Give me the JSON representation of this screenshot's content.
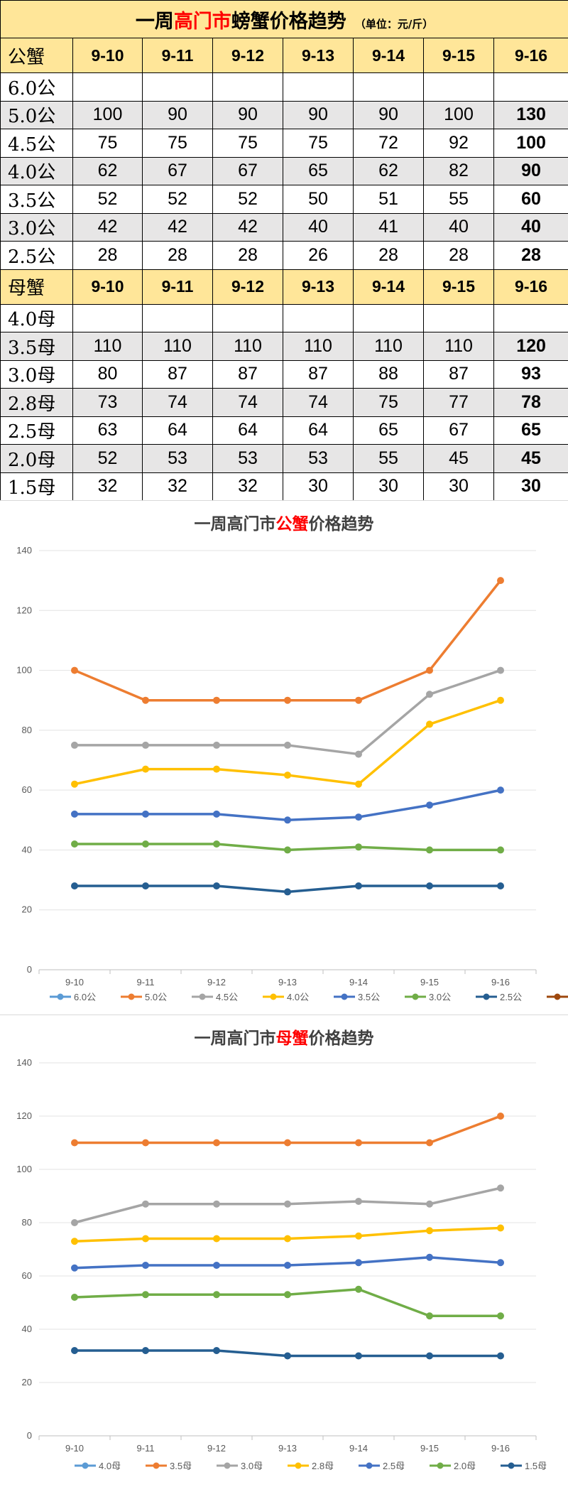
{
  "table": {
    "title_prefix": "一周",
    "title_highlight": "高门市",
    "title_suffix": "螃蟹价格趋势",
    "unit": "（单位：元/斤）",
    "male": {
      "label": "公蟹",
      "dates": [
        "9-10",
        "9-11",
        "9-12",
        "9-13",
        "9-14",
        "9-15",
        "9-16"
      ],
      "rows": [
        {
          "grade": "6.0公",
          "values": [
            "",
            "",
            "",
            "",
            "",
            "",
            ""
          ]
        },
        {
          "grade": "5.0公",
          "values": [
            "100",
            "90",
            "90",
            "90",
            "90",
            "100",
            "130"
          ]
        },
        {
          "grade": "4.5公",
          "values": [
            "75",
            "75",
            "75",
            "75",
            "72",
            "92",
            "100"
          ]
        },
        {
          "grade": "4.0公",
          "values": [
            "62",
            "67",
            "67",
            "65",
            "62",
            "82",
            "90"
          ]
        },
        {
          "grade": "3.5公",
          "values": [
            "52",
            "52",
            "52",
            "50",
            "51",
            "55",
            "60"
          ]
        },
        {
          "grade": "3.0公",
          "values": [
            "42",
            "42",
            "42",
            "40",
            "41",
            "40",
            "40"
          ]
        },
        {
          "grade": "2.5公",
          "values": [
            "28",
            "28",
            "28",
            "26",
            "28",
            "28",
            "28"
          ]
        }
      ]
    },
    "female": {
      "label": "母蟹",
      "dates": [
        "9-10",
        "9-11",
        "9-12",
        "9-13",
        "9-14",
        "9-15",
        "9-16"
      ],
      "rows": [
        {
          "grade": "4.0母",
          "values": [
            "",
            "",
            "",
            "",
            "",
            "",
            ""
          ]
        },
        {
          "grade": "3.5母",
          "values": [
            "110",
            "110",
            "110",
            "110",
            "110",
            "110",
            "120"
          ]
        },
        {
          "grade": "3.0母",
          "values": [
            "80",
            "87",
            "87",
            "87",
            "88",
            "87",
            "93"
          ]
        },
        {
          "grade": "2.8母",
          "values": [
            "73",
            "74",
            "74",
            "74",
            "75",
            "77",
            "78"
          ]
        },
        {
          "grade": "2.5母",
          "values": [
            "63",
            "64",
            "64",
            "64",
            "65",
            "67",
            "65"
          ]
        },
        {
          "grade": "2.0母",
          "values": [
            "52",
            "53",
            "53",
            "53",
            "55",
            "45",
            "45"
          ]
        },
        {
          "grade": "1.5母",
          "values": [
            "32",
            "32",
            "32",
            "30",
            "30",
            "30",
            "30"
          ]
        }
      ]
    }
  },
  "chart_data": [
    {
      "type": "line",
      "title_prefix": "一周高门市",
      "title_highlight": "公蟹",
      "title_suffix": "价格趋势",
      "categories": [
        "9-10",
        "9-11",
        "9-12",
        "9-13",
        "9-14",
        "9-15",
        "9-16"
      ],
      "ylim": [
        0,
        140
      ],
      "yticks": [
        "0",
        "20",
        "40",
        "60",
        "80",
        "100",
        "120",
        "140"
      ],
      "legend_position": "bottom",
      "series": [
        {
          "name": "6.0公",
          "color": "#5b9bd5",
          "values": [
            null,
            null,
            null,
            null,
            null,
            null,
            null
          ]
        },
        {
          "name": "5.0公",
          "color": "#ed7d31",
          "values": [
            100,
            90,
            90,
            90,
            90,
            100,
            130
          ]
        },
        {
          "name": "4.5公",
          "color": "#a5a5a5",
          "values": [
            75,
            75,
            75,
            75,
            72,
            92,
            100
          ]
        },
        {
          "name": "4.0公",
          "color": "#ffc000",
          "values": [
            62,
            67,
            67,
            65,
            62,
            82,
            90
          ]
        },
        {
          "name": "3.5公",
          "color": "#4472c4",
          "values": [
            52,
            52,
            52,
            50,
            51,
            55,
            60
          ]
        },
        {
          "name": "3.0公",
          "color": "#70ad47",
          "values": [
            42,
            42,
            42,
            40,
            41,
            40,
            40
          ]
        },
        {
          "name": "2.5公",
          "color": "#255e91",
          "values": [
            28,
            28,
            28,
            26,
            28,
            28,
            28
          ]
        },
        {
          "name": "",
          "color": "#9e480e",
          "values": [
            null,
            null,
            null,
            null,
            null,
            null,
            null
          ]
        }
      ]
    },
    {
      "type": "line",
      "title_prefix": "一周高门市",
      "title_highlight": "母蟹",
      "title_suffix": "价格趋势",
      "categories": [
        "9-10",
        "9-11",
        "9-12",
        "9-13",
        "9-14",
        "9-15",
        "9-16"
      ],
      "ylim": [
        0,
        140
      ],
      "yticks": [
        "0",
        "20",
        "40",
        "60",
        "80",
        "100",
        "120",
        "140"
      ],
      "legend_position": "bottom",
      "series": [
        {
          "name": "4.0母",
          "color": "#5b9bd5",
          "values": [
            null,
            null,
            null,
            null,
            null,
            null,
            null
          ]
        },
        {
          "name": "3.5母",
          "color": "#ed7d31",
          "values": [
            110,
            110,
            110,
            110,
            110,
            110,
            120
          ]
        },
        {
          "name": "3.0母",
          "color": "#a5a5a5",
          "values": [
            80,
            87,
            87,
            87,
            88,
            87,
            93
          ]
        },
        {
          "name": "2.8母",
          "color": "#ffc000",
          "values": [
            73,
            74,
            74,
            74,
            75,
            77,
            78
          ]
        },
        {
          "name": "2.5母",
          "color": "#4472c4",
          "values": [
            63,
            64,
            64,
            64,
            65,
            67,
            65
          ]
        },
        {
          "name": "2.0母",
          "color": "#70ad47",
          "values": [
            52,
            53,
            53,
            53,
            55,
            45,
            45
          ]
        },
        {
          "name": "1.5母",
          "color": "#255e91",
          "values": [
            32,
            32,
            32,
            30,
            30,
            30,
            30
          ]
        }
      ]
    }
  ]
}
